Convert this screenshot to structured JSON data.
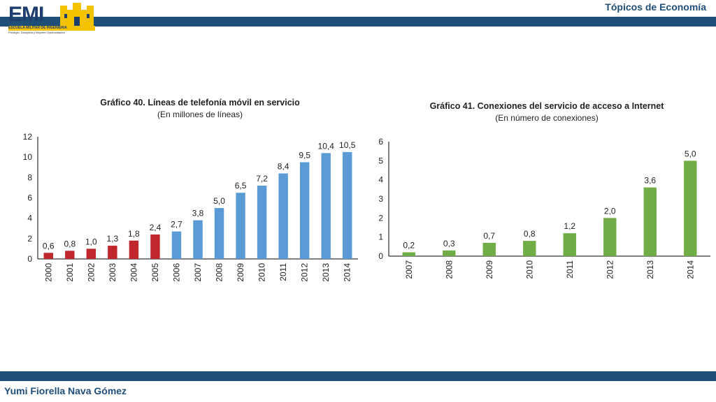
{
  "header": {
    "title": "Tópicos de Economía",
    "logo_text": "EMI",
    "logo_sub": "ESCUELA MILITAR DE INGENIERIA",
    "logo_motto": "Prestigio, Disciplina y Mejores Oportunidades"
  },
  "footer": {
    "author": "Yumi Fiorella Nava Gómez"
  },
  "chart_data": [
    {
      "type": "bar",
      "title": "Gráfico 40. Líneas de telefonía móvil en servicio",
      "subtitle": "(En millones de líneas)",
      "categories": [
        "2000",
        "2001",
        "2002",
        "2003",
        "2004",
        "2005",
        "2006",
        "2007",
        "2008",
        "2009",
        "2010",
        "2011",
        "2012",
        "2013",
        "2014"
      ],
      "values": [
        0.6,
        0.8,
        1.0,
        1.3,
        1.8,
        2.4,
        2.7,
        3.8,
        5.0,
        6.5,
        7.2,
        8.4,
        9.5,
        10.4,
        10.5
      ],
      "labels": [
        "0,6",
        "0,8",
        "1,0",
        "1,3",
        "1,8",
        "2,4",
        "2,7",
        "3,8",
        "5,0",
        "6,5",
        "7,2",
        "8,4",
        "9,5",
        "10,4",
        "10,5"
      ],
      "colors": [
        "#c0272d",
        "#c0272d",
        "#c0272d",
        "#c0272d",
        "#c0272d",
        "#c0272d",
        "#5b9bd5",
        "#5b9bd5",
        "#5b9bd5",
        "#5b9bd5",
        "#5b9bd5",
        "#5b9bd5",
        "#5b9bd5",
        "#5b9bd5",
        "#5b9bd5"
      ],
      "ylim": [
        0,
        12
      ],
      "yticks": [
        0,
        2,
        4,
        6,
        8,
        10,
        12
      ],
      "grid": false
    },
    {
      "type": "bar",
      "title": "Gráfico 41. Conexiones del servicio de acceso a Internet",
      "subtitle": "(En número de conexiones)",
      "categories": [
        "2007",
        "2008",
        "2009",
        "2010",
        "2011",
        "2012",
        "2013",
        "2014"
      ],
      "values": [
        0.2,
        0.3,
        0.7,
        0.8,
        1.2,
        2.0,
        3.6,
        5.0
      ],
      "labels": [
        "0,2",
        "0,3",
        "0,7",
        "0,8",
        "1,2",
        "2,0",
        "3,6",
        "5,0"
      ],
      "colors": [
        "#70ad47",
        "#70ad47",
        "#70ad47",
        "#70ad47",
        "#70ad47",
        "#70ad47",
        "#70ad47",
        "#70ad47"
      ],
      "ylim": [
        0,
        6
      ],
      "yticks": [
        0,
        1,
        2,
        3,
        4,
        5,
        6
      ],
      "grid": false
    }
  ]
}
